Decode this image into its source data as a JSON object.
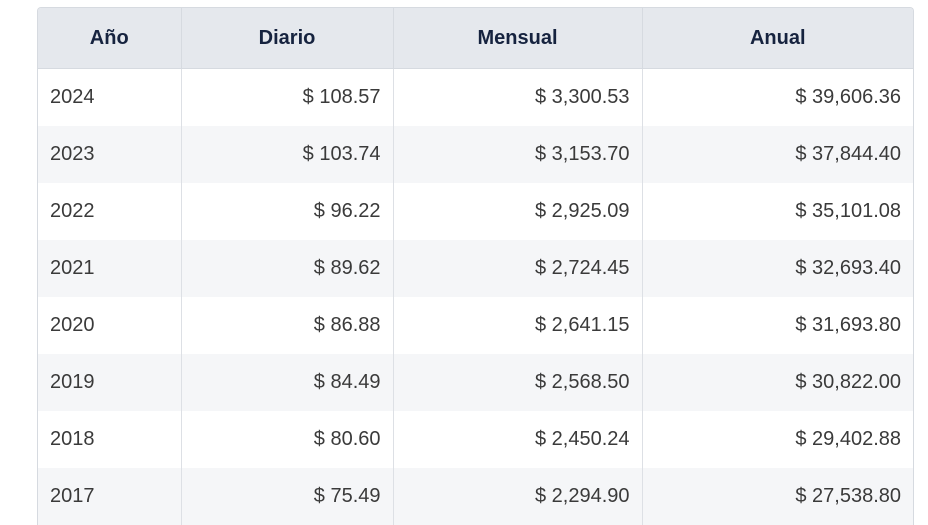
{
  "table": {
    "headers": [
      "Año",
      "Diario",
      "Mensual",
      "Anual"
    ],
    "rows": [
      [
        "2024",
        "$ 108.57",
        "$ 3,300.53",
        "$ 39,606.36"
      ],
      [
        "2023",
        "$ 103.74",
        "$ 3,153.70",
        "$ 37,844.40"
      ],
      [
        "2022",
        "$ 96.22",
        "$ 2,925.09",
        "$ 35,101.08"
      ],
      [
        "2021",
        "$ 89.62",
        "$ 2,724.45",
        "$ 32,693.40"
      ],
      [
        "2020",
        "$ 86.88",
        "$ 2,641.15",
        "$ 31,693.80"
      ],
      [
        "2019",
        "$ 84.49",
        "$ 2,568.50",
        "$ 30,822.00"
      ],
      [
        "2018",
        "$ 80.60",
        "$ 2,450.24",
        "$ 29,402.88"
      ],
      [
        "2017",
        "$ 75.49",
        "$ 2,294.90",
        "$ 27,538.80"
      ]
    ]
  }
}
